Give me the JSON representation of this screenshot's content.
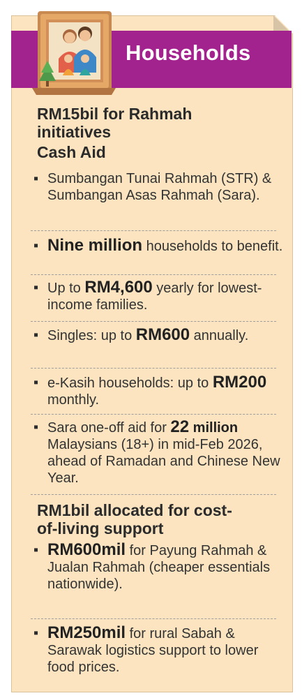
{
  "header": {
    "title": "Households"
  },
  "section1": {
    "heading": "RM15bil for Rahmah initiatives",
    "subheading": "Cash Aid",
    "items": [
      {
        "text": "Sumbangan Tunai Rahmah (STR) & Sumbangan Asas Rahmah (Sara)."
      },
      {
        "bold": "Nine million",
        "rest": " households to benefit."
      },
      {
        "pre": "Up to ",
        "bold": "RM4,600",
        "rest": " yearly for lowest-income families."
      },
      {
        "pre": "Singles: up to ",
        "bold": "RM600",
        "rest": " annually."
      },
      {
        "pre": "e-Kasih households: up to ",
        "bold": "RM200",
        "rest": " monthly."
      },
      {
        "pre": "Sara one-off aid for ",
        "bold": "22",
        "bold2": " million",
        "rest": " Malaysians (18+) in mid-Feb 2026, ahead of Ramadan and Chinese New Year."
      }
    ]
  },
  "section2": {
    "heading": "RM1bil allocated for cost-of-living support",
    "items": [
      {
        "bold": "RM600mil",
        "rest": " for Payung Rahmah & Jualan Rahmah (cheaper essentials nationwide)."
      },
      {
        "bold": "RM250mil",
        "rest": " for rural Sabah & Sarawak logistics support to lower food prices."
      }
    ]
  },
  "colors": {
    "banner": "#a3238e",
    "card": "#fbe4bf"
  },
  "icon": "family-portrait-icon"
}
